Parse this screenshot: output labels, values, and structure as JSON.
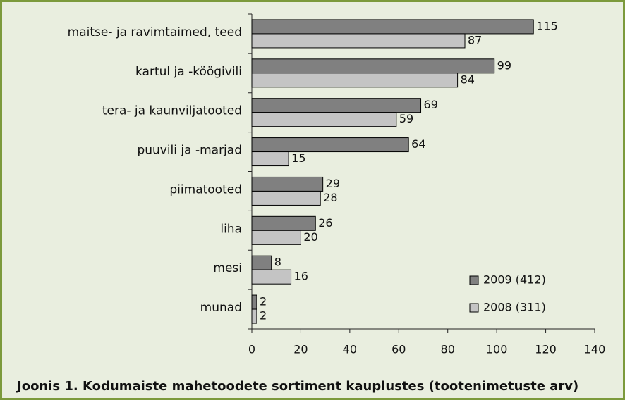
{
  "chart_data": {
    "type": "bar",
    "orientation": "horizontal",
    "title": "Joonis 1. Kodumaiste mahetoodete sortiment kauplustes (tootenimetuste arv)",
    "categories": [
      "maitse- ja ravimtaimed, teed",
      "kartul ja -köögivili",
      "tera- ja kaunviljatooted",
      "puuvili ja -marjad",
      "piimatooted",
      "liha",
      "mesi",
      "munad"
    ],
    "series": [
      {
        "name": "2009 (412)",
        "color": "#808080",
        "values": [
          115,
          99,
          69,
          64,
          29,
          26,
          8,
          2
        ]
      },
      {
        "name": "2008 (311)",
        "color": "#c4c4c4",
        "values": [
          87,
          84,
          59,
          15,
          28,
          20,
          16,
          2
        ]
      }
    ],
    "xlim": [
      0,
      140
    ],
    "xticks": [
      0,
      20,
      40,
      60,
      80,
      100,
      120,
      140
    ],
    "legend": "lower right",
    "grid": false
  }
}
